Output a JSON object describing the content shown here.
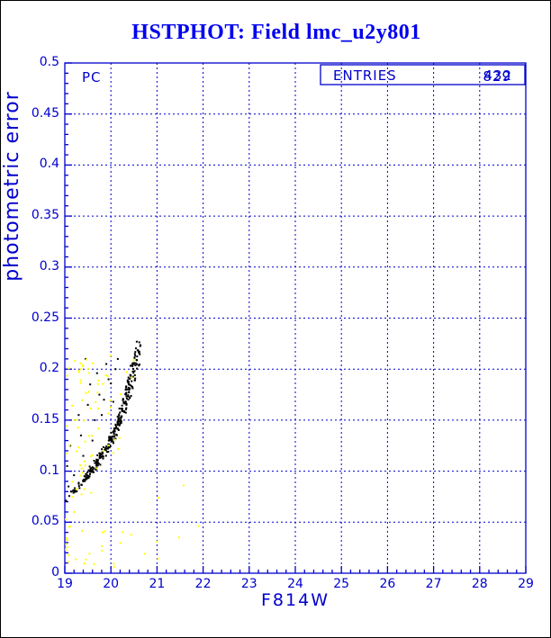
{
  "chart_data": {
    "type": "scatter",
    "title": "HSTPHOT: Field lmc_u2y801",
    "xlabel": "F814W",
    "ylabel": "photometric error",
    "xlim": [
      19,
      29
    ],
    "ylim": [
      0,
      0.5
    ],
    "x_tick_labels": [
      "19",
      "20",
      "21",
      "22",
      "23",
      "24",
      "25",
      "26",
      "27",
      "28",
      "29"
    ],
    "y_tick_labels": [
      "0",
      "0.05",
      "0.1",
      "0.15",
      "0.2",
      "0.25",
      "0.3",
      "0.35",
      "0.4",
      "0.45",
      "0.5"
    ],
    "x_minor_step": 0.2,
    "y_minor_step": 0.01,
    "grid": {
      "style": "dashed",
      "at_x": [
        20,
        21,
        22,
        23,
        24,
        25,
        26,
        27,
        28
      ],
      "at_y": [
        0.05,
        0.1,
        0.15,
        0.2,
        0.25,
        0.3,
        0.35,
        0.4,
        0.45
      ]
    },
    "axis_color": "#0000CD",
    "title_color": "#0000EE",
    "legend_position": "none",
    "annotations": {
      "chip_label": "PC",
      "entries_label": "ENTRIES",
      "entries_values": [
        "432",
        "829"
      ]
    },
    "series": [
      {
        "name": "detected-stars-error-ridge",
        "type": "curve-scatter",
        "color": "#000000",
        "marker_px": 2,
        "n": 300,
        "seed": 1234567,
        "x_span": [
          19.0,
          20.62
        ],
        "curve": [
          [
            19.0,
            0.072
          ],
          [
            19.1,
            0.076
          ],
          [
            19.2,
            0.08
          ],
          [
            19.3,
            0.085
          ],
          [
            19.4,
            0.09
          ],
          [
            19.5,
            0.096
          ],
          [
            19.6,
            0.102
          ],
          [
            19.7,
            0.108
          ],
          [
            19.8,
            0.115
          ],
          [
            19.9,
            0.122
          ],
          [
            20.0,
            0.13
          ],
          [
            20.1,
            0.14
          ],
          [
            20.2,
            0.152
          ],
          [
            20.3,
            0.166
          ],
          [
            20.4,
            0.182
          ],
          [
            20.5,
            0.2
          ],
          [
            20.6,
            0.218
          ]
        ]
      },
      {
        "name": "black-outliers",
        "type": "points",
        "color": "#000000",
        "marker_px": 2,
        "points": [
          [
            19.05,
            0.105
          ],
          [
            19.12,
            0.125
          ],
          [
            19.3,
            0.155
          ],
          [
            19.35,
            0.135
          ],
          [
            19.5,
            0.165
          ],
          [
            19.55,
            0.185
          ],
          [
            19.7,
            0.196
          ],
          [
            19.75,
            0.175
          ],
          [
            19.9,
            0.205
          ],
          [
            19.95,
            0.19
          ],
          [
            19.45,
            0.21
          ],
          [
            19.2,
            0.096
          ],
          [
            19.6,
            0.13
          ],
          [
            19.8,
            0.155
          ],
          [
            20.0,
            0.186
          ],
          [
            20.1,
            0.2
          ],
          [
            19.4,
            0.115
          ],
          [
            19.08,
            0.085
          ],
          [
            20.05,
            0.168
          ],
          [
            19.65,
            0.15
          ],
          [
            19.85,
            0.17
          ],
          [
            20.15,
            0.21
          ]
        ]
      },
      {
        "name": "flagged-stars-yellow-cloud",
        "type": "region-scatter",
        "color": "#FFFF00",
        "marker_px": 2,
        "n": 72,
        "seed": 424242,
        "x_range": [
          19.0,
          20.55
        ],
        "y_range": [
          0.012,
          0.215
        ],
        "avoid_below_curve": true
      },
      {
        "name": "flagged-stars-low-error-strip",
        "type": "region-scatter",
        "color": "#FFFF00",
        "marker_px": 2,
        "n": 26,
        "seed": 987654,
        "x_range": [
          19.02,
          21.3
        ],
        "y_range": [
          0.006,
          0.046
        ],
        "avoid_below_curve": false
      },
      {
        "name": "yellow-strays",
        "type": "points",
        "color": "#FFFF00",
        "marker_px": 2,
        "points": [
          [
            21.03,
            0.074
          ],
          [
            21.58,
            0.086
          ],
          [
            21.0,
            0.031
          ],
          [
            21.48,
            0.035
          ],
          [
            21.9,
            0.046
          ]
        ]
      }
    ]
  }
}
